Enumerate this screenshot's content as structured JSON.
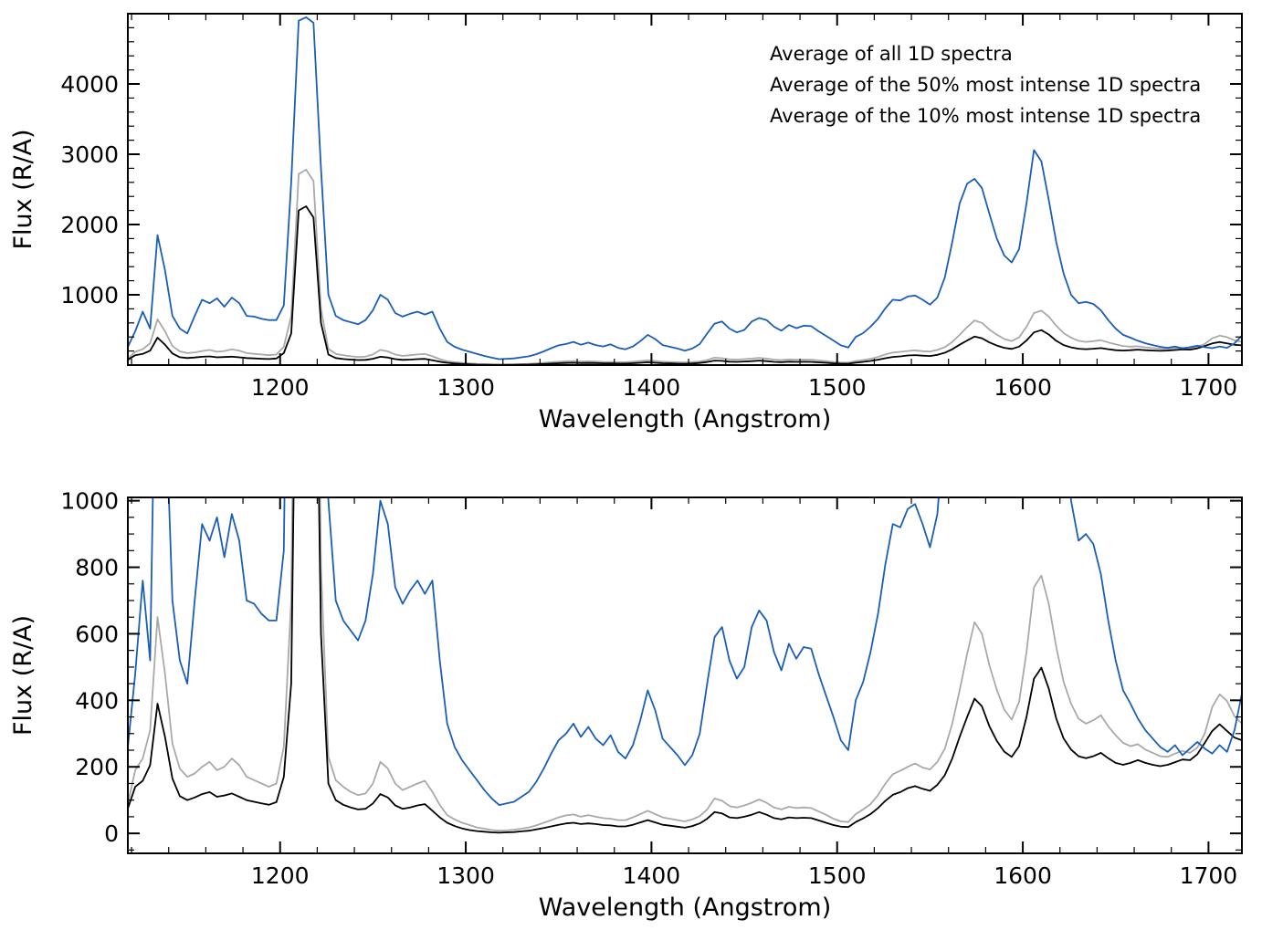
{
  "figure": {
    "background": "#ffffff",
    "frame_color": "#000000"
  },
  "chart_data": {
    "type": "line",
    "title": "",
    "xlabel": "Wavelength (Angstrom)",
    "ylabel": "Flux (R/A)",
    "x_units": "Angstrom",
    "y_units": "R/A",
    "grid": false,
    "x": [
      1118,
      1122,
      1126,
      1130,
      1134,
      1138,
      1142,
      1146,
      1150,
      1154,
      1158,
      1162,
      1166,
      1170,
      1174,
      1178,
      1182,
      1186,
      1190,
      1194,
      1198,
      1202,
      1206,
      1210,
      1214,
      1218,
      1222,
      1226,
      1230,
      1234,
      1238,
      1242,
      1246,
      1250,
      1254,
      1258,
      1262,
      1266,
      1270,
      1274,
      1278,
      1282,
      1286,
      1290,
      1294,
      1298,
      1302,
      1306,
      1310,
      1314,
      1318,
      1322,
      1326,
      1330,
      1334,
      1338,
      1342,
      1346,
      1350,
      1354,
      1358,
      1362,
      1366,
      1370,
      1374,
      1378,
      1382,
      1386,
      1390,
      1394,
      1398,
      1402,
      1406,
      1410,
      1414,
      1418,
      1422,
      1426,
      1430,
      1434,
      1438,
      1442,
      1446,
      1450,
      1454,
      1458,
      1462,
      1466,
      1470,
      1474,
      1478,
      1482,
      1486,
      1490,
      1494,
      1498,
      1502,
      1506,
      1510,
      1514,
      1518,
      1522,
      1526,
      1530,
      1534,
      1538,
      1542,
      1546,
      1550,
      1554,
      1558,
      1562,
      1566,
      1570,
      1574,
      1578,
      1582,
      1586,
      1590,
      1594,
      1598,
      1602,
      1606,
      1610,
      1614,
      1618,
      1622,
      1626,
      1630,
      1634,
      1638,
      1642,
      1646,
      1650,
      1654,
      1658,
      1662,
      1666,
      1670,
      1674,
      1678,
      1682,
      1686,
      1690,
      1694,
      1698,
      1702,
      1706,
      1710,
      1714,
      1718
    ],
    "series": [
      {
        "id": "all",
        "name": "Average of all 1D spectra",
        "color": "#000000",
        "values": [
          75,
          140,
          158,
          205,
          390,
          290,
          165,
          112,
          100,
          108,
          118,
          124,
          110,
          114,
          120,
          110,
          100,
          95,
          90,
          86,
          94,
          170,
          450,
          2200,
          2260,
          2100,
          600,
          150,
          100,
          86,
          78,
          72,
          74,
          90,
          118,
          108,
          84,
          74,
          78,
          84,
          88,
          68,
          48,
          32,
          22,
          15,
          10,
          7,
          5,
          3,
          2,
          3,
          4,
          6,
          8,
          12,
          16,
          21,
          26,
          30,
          32,
          28,
          30,
          28,
          25,
          24,
          21,
          21,
          26,
          33,
          40,
          33,
          26,
          23,
          20,
          17,
          22,
          30,
          44,
          64,
          60,
          48,
          46,
          50,
          56,
          64,
          56,
          46,
          42,
          48,
          46,
          47,
          46,
          39,
          32,
          25,
          20,
          19,
          34,
          45,
          58,
          76,
          98,
          116,
          124,
          136,
          142,
          134,
          128,
          146,
          175,
          225,
          290,
          350,
          405,
          382,
          322,
          278,
          246,
          230,
          262,
          350,
          465,
          498,
          435,
          345,
          285,
          252,
          232,
          226,
          232,
          242,
          226,
          212,
          206,
          212,
          220,
          212,
          206,
          202,
          206,
          214,
          222,
          220,
          238,
          272,
          308,
          328,
          308,
          288,
          280
        ]
      },
      {
        "id": "50pct",
        "name": "Average of the 50% most intense 1D spectra",
        "color": "#a9a9a9",
        "values": [
          90,
          190,
          225,
          310,
          650,
          480,
          270,
          195,
          170,
          180,
          200,
          215,
          190,
          200,
          225,
          205,
          170,
          160,
          150,
          140,
          150,
          260,
          700,
          2720,
          2780,
          2620,
          800,
          230,
          160,
          140,
          125,
          115,
          120,
          150,
          215,
          195,
          150,
          130,
          140,
          150,
          158,
          125,
          85,
          55,
          42,
          32,
          25,
          18,
          14,
          10,
          8,
          9,
          11,
          14,
          18,
          24,
          32,
          40,
          48,
          54,
          57,
          50,
          55,
          50,
          46,
          44,
          40,
          40,
          48,
          58,
          68,
          58,
          48,
          44,
          40,
          36,
          42,
          52,
          72,
          105,
          98,
          82,
          78,
          84,
          92,
          102,
          92,
          78,
          72,
          80,
          76,
          78,
          76,
          66,
          56,
          44,
          36,
          34,
          58,
          72,
          88,
          115,
          150,
          178,
          188,
          200,
          210,
          198,
          192,
          215,
          255,
          330,
          430,
          540,
          635,
          600,
          505,
          432,
          372,
          342,
          395,
          545,
          740,
          775,
          690,
          560,
          455,
          390,
          345,
          330,
          340,
          355,
          322,
          295,
          272,
          262,
          268,
          252,
          242,
          232,
          230,
          240,
          248,
          242,
          258,
          300,
          380,
          418,
          398,
          352,
          330
        ]
      },
      {
        "id": "10pct",
        "name": "Average of the 10% most intense 1D spectra",
        "color": "#1b5eb8",
        "values": [
          260,
          480,
          760,
          520,
          1850,
          1350,
          700,
          520,
          450,
          700,
          930,
          880,
          950,
          830,
          960,
          880,
          700,
          690,
          660,
          640,
          640,
          850,
          2600,
          4900,
          4950,
          4870,
          2800,
          1000,
          700,
          640,
          610,
          580,
          640,
          780,
          1000,
          930,
          740,
          690,
          730,
          760,
          720,
          760,
          520,
          330,
          260,
          220,
          190,
          160,
          130,
          105,
          85,
          90,
          95,
          110,
          125,
          155,
          195,
          240,
          280,
          300,
          330,
          290,
          320,
          285,
          265,
          295,
          245,
          225,
          265,
          340,
          430,
          370,
          285,
          260,
          235,
          205,
          235,
          300,
          450,
          590,
          620,
          520,
          465,
          500,
          620,
          670,
          640,
          545,
          490,
          570,
          525,
          560,
          555,
          480,
          415,
          350,
          280,
          250,
          400,
          455,
          545,
          660,
          810,
          930,
          920,
          975,
          990,
          930,
          860,
          960,
          1250,
          1750,
          2300,
          2580,
          2650,
          2520,
          2150,
          1800,
          1560,
          1460,
          1650,
          2300,
          3060,
          2900,
          2350,
          1750,
          1300,
          1000,
          880,
          900,
          870,
          780,
          640,
          520,
          430,
          390,
          345,
          310,
          285,
          260,
          245,
          265,
          235,
          255,
          275,
          255,
          240,
          265,
          245,
          310,
          420
        ]
      }
    ],
    "draw_order": [
      1,
      0,
      2
    ],
    "panels": [
      {
        "name": "top",
        "xlim": [
          1118,
          1718
        ],
        "ylim": [
          0,
          5000
        ],
        "xticks": [
          1200,
          1300,
          1400,
          1500,
          1600,
          1700
        ],
        "xtick_labels": [
          "1200",
          "1300",
          "1400",
          "1500",
          "1600",
          "1700"
        ],
        "x_minor_step": 20,
        "yticks": [
          0,
          1000,
          2000,
          3000,
          4000,
          5000
        ],
        "ytick_labels": [
          "",
          "1000",
          "2000",
          "3000",
          "4000",
          ""
        ],
        "y_minor_step": 200,
        "xlabel": "Wavelength (Angstrom)",
        "ylabel": "Flux (R/A)",
        "legend": {
          "position": "top-right-inside",
          "entries": [
            {
              "label": "Average of all 1D spectra",
              "color": "#000000"
            },
            {
              "label": "Average of the 50% most intense 1D spectra",
              "color": "#a9a9a9"
            },
            {
              "label": "Average of the 10% most intense 1D spectra",
              "color": "#1b5eb8"
            }
          ]
        }
      },
      {
        "name": "bottom",
        "xlim": [
          1118,
          1718
        ],
        "ylim": [
          -60,
          1010
        ],
        "xticks": [
          1200,
          1300,
          1400,
          1500,
          1600,
          1700
        ],
        "xtick_labels": [
          "1200",
          "1300",
          "1400",
          "1500",
          "1600",
          "1700"
        ],
        "x_minor_step": 20,
        "yticks": [
          0,
          200,
          400,
          600,
          800,
          1000
        ],
        "ytick_labels": [
          "0",
          "200",
          "400",
          "600",
          "800",
          "1000"
        ],
        "y_minor_step": 50,
        "xlabel": "Wavelength (Angstrom)",
        "ylabel": "Flux (R/A)",
        "legend": null
      }
    ]
  }
}
